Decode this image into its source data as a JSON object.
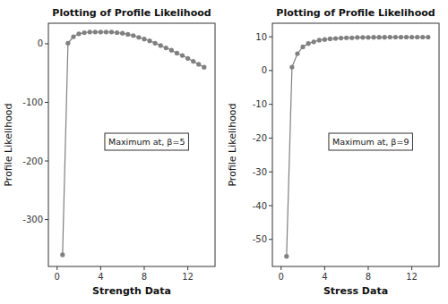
{
  "chart_data": [
    {
      "type": "line",
      "title": "Plotting of Profile Likelihood",
      "x_label": "Strength Data",
      "y_label": "Profile Likelihood",
      "annotation": "Maximum at, β=5",
      "x": [
        0.5,
        1.0,
        1.5,
        2.0,
        2.5,
        3.0,
        3.5,
        4.0,
        4.5,
        5.0,
        5.5,
        6.0,
        6.5,
        7.0,
        7.5,
        8.0,
        8.5,
        9.0,
        9.5,
        10.0,
        10.5,
        11.0,
        11.5,
        12.0,
        12.5,
        13.0,
        13.5
      ],
      "values": [
        -360,
        1,
        12,
        17,
        19,
        20,
        20,
        20,
        20,
        20,
        19,
        18,
        16,
        14,
        11,
        8,
        5,
        1,
        -3,
        -7,
        -11,
        -16,
        -20,
        -25,
        -30,
        -35,
        -40
      ],
      "color": "#808080",
      "marker": "circle",
      "grid": false,
      "xlim": [
        -0.8,
        14.5
      ],
      "ylim": [
        -380,
        35
      ],
      "xticks": [
        0,
        4,
        8,
        12
      ],
      "yticks": [
        0,
        -100,
        -200,
        -300
      ]
    },
    {
      "type": "line",
      "title": "Plotting of Profile Likelihood",
      "x_label": "Stress Data",
      "y_label": "Profile Likelihood",
      "annotation": "Maximum at, β=9",
      "x": [
        0.5,
        1.0,
        1.5,
        2.0,
        2.5,
        3.0,
        3.5,
        4.0,
        4.5,
        5.0,
        5.5,
        6.0,
        6.5,
        7.0,
        7.5,
        8.0,
        8.5,
        9.0,
        9.5,
        10.0,
        10.5,
        11.0,
        11.5,
        12.0,
        12.5,
        13.0,
        13.5
      ],
      "values": [
        -55,
        1,
        5,
        7,
        8,
        8.5,
        9,
        9.2,
        9.4,
        9.5,
        9.6,
        9.7,
        9.7,
        9.8,
        9.8,
        9.8,
        9.85,
        9.85,
        9.85,
        9.9,
        9.9,
        9.9,
        9.9,
        9.9,
        9.9,
        9.9,
        9.9
      ],
      "color": "#808080",
      "marker": "circle",
      "grid": false,
      "xlim": [
        -0.8,
        14.5
      ],
      "ylim": [
        -58,
        14
      ],
      "xticks": [
        0,
        4,
        8,
        12
      ],
      "yticks": [
        10,
        0,
        -10,
        -20,
        -30,
        -40,
        -50
      ]
    }
  ]
}
